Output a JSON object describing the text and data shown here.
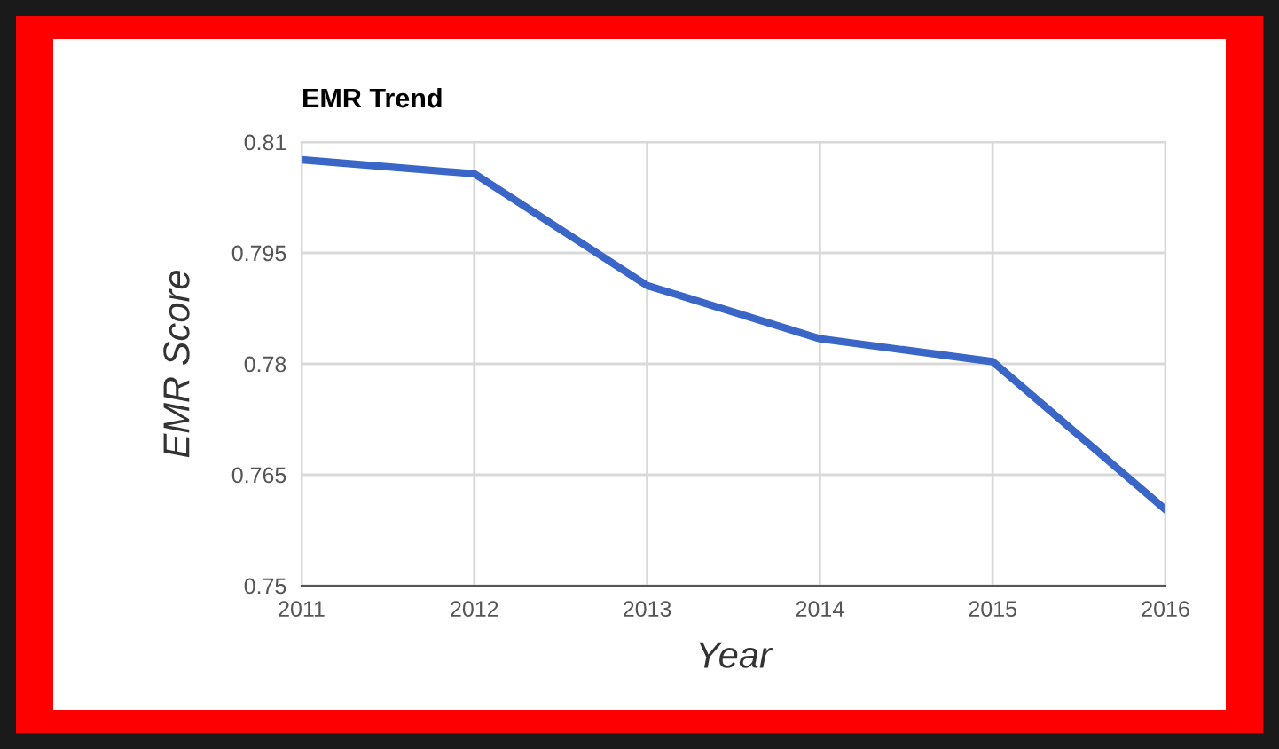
{
  "chart_data": {
    "type": "line",
    "title": "EMR Trend",
    "xlabel": "Year",
    "ylabel": "EMR Score",
    "x": [
      2011,
      2012,
      2013,
      2014,
      2015,
      2016
    ],
    "series": [
      {
        "color": "#3a66c8",
        "values": [
          0.8076,
          0.8057,
          0.7906,
          0.7834,
          0.7803,
          0.7603
        ]
      }
    ],
    "xlim": [
      2011,
      2016
    ],
    "xticks": [
      2011,
      2012,
      2013,
      2014,
      2015,
      2016
    ],
    "ylim": [
      0.75,
      0.81
    ],
    "yticks": [
      0.75,
      0.765,
      0.78,
      0.795,
      0.81
    ],
    "grid": true,
    "marker": "none",
    "line_style": "solid"
  }
}
